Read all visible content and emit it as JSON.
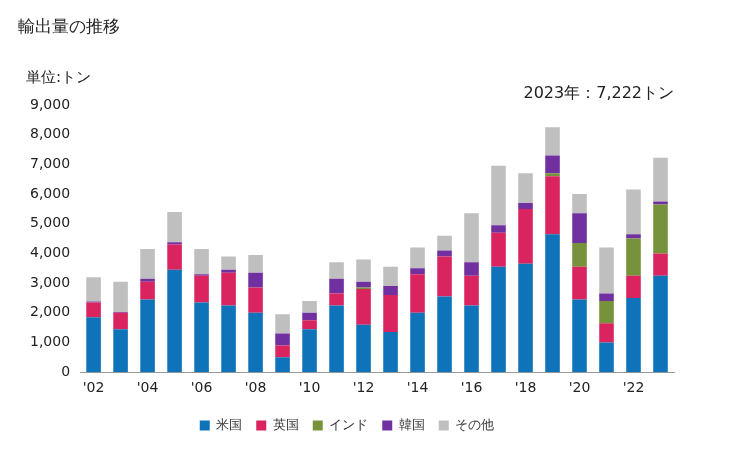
{
  "chart_data": {
    "type": "bar",
    "title": "輸出量の推移",
    "ylabel": "単位:トン",
    "annotations": [
      "2023年：7,222トン"
    ],
    "stacked": true,
    "grid": false,
    "legend": "bottom",
    "categories": [
      "'02",
      null,
      "'04",
      null,
      "'06",
      null,
      "'08",
      null,
      "'10",
      null,
      "'12",
      null,
      "'14",
      null,
      "'16",
      null,
      "'18",
      null,
      "'20",
      null,
      "'22",
      null
    ],
    "series": [
      {
        "name": "米国",
        "color": "#0e73b8",
        "values": [
          1850,
          1450,
          2450,
          3450,
          2350,
          2250,
          2000,
          500,
          1450,
          2250,
          1600,
          1350,
          2000,
          2550,
          2250,
          3550,
          3650,
          4650,
          2450,
          1000,
          2500,
          3250
        ]
      },
      {
        "name": "英国",
        "color": "#d9245f",
        "values": [
          500,
          550,
          600,
          850,
          900,
          1100,
          850,
          400,
          300,
          400,
          1200,
          1250,
          1300,
          1350,
          1000,
          1150,
          1850,
          1950,
          1100,
          650,
          750,
          750
        ]
      },
      {
        "name": "インド",
        "color": "#76933c",
        "values": [
          0,
          0,
          0,
          0,
          0,
          0,
          0,
          0,
          0,
          0,
          50,
          0,
          0,
          0,
          0,
          0,
          0,
          100,
          800,
          750,
          1250,
          1650
        ]
      },
      {
        "name": "韓国",
        "color": "#7030a0",
        "values": [
          30,
          30,
          100,
          80,
          50,
          100,
          500,
          400,
          250,
          500,
          200,
          300,
          200,
          200,
          450,
          250,
          200,
          600,
          1000,
          250,
          150,
          100
        ]
      },
      {
        "name": "その他",
        "color": "#bfbfbf",
        "values": [
          820,
          1020,
          1000,
          1020,
          850,
          450,
          600,
          650,
          400,
          550,
          750,
          650,
          700,
          500,
          1650,
          2000,
          1000,
          950,
          650,
          1550,
          1500,
          1472
        ]
      }
    ],
    "ylim": [
      0,
      9000
    ],
    "yticks": [
      0,
      {
        "value": 1000,
        "label": "1,000"
      },
      {
        "value": 2000,
        "label": "2,000"
      },
      {
        "value": 3000,
        "label": "3,000"
      },
      {
        "value": 4000,
        "label": "4,000"
      },
      {
        "value": 5000,
        "label": "5,000"
      },
      {
        "value": 6000,
        "label": "6,000"
      },
      {
        "value": 7000,
        "label": "7,000"
      },
      {
        "value": 8000,
        "label": "8,000"
      },
      {
        "value": 9000,
        "label": "9,000"
      }
    ]
  }
}
